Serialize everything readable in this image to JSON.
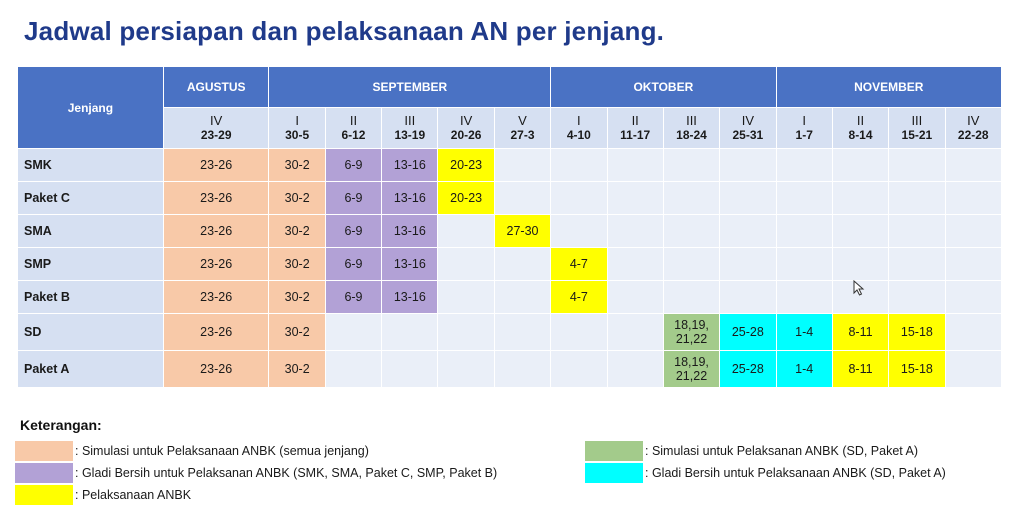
{
  "title": "Jadwal persiapan dan pelaksanaan AN per jenjang.",
  "table": {
    "jenjang_header": "Jenjang",
    "months": [
      {
        "label": "AGUSTUS",
        "span": 1
      },
      {
        "label": "SEPTEMBER",
        "span": 5
      },
      {
        "label": "OKTOBER",
        "span": 4
      },
      {
        "label": "NOVEMBER",
        "span": 4
      }
    ],
    "weeks": [
      {
        "roman": "IV",
        "dates": "23-29"
      },
      {
        "roman": "I",
        "dates": "30-5"
      },
      {
        "roman": "II",
        "dates": "6-12"
      },
      {
        "roman": "III",
        "dates": "13-19"
      },
      {
        "roman": "IV",
        "dates": "20-26"
      },
      {
        "roman": "V",
        "dates": "27-3"
      },
      {
        "roman": "I",
        "dates": "4-10"
      },
      {
        "roman": "II",
        "dates": "11-17"
      },
      {
        "roman": "III",
        "dates": "18-24"
      },
      {
        "roman": "IV",
        "dates": "25-31"
      },
      {
        "roman": "I",
        "dates": "1-7"
      },
      {
        "roman": "II",
        "dates": "8-14"
      },
      {
        "roman": "III",
        "dates": "15-21"
      },
      {
        "roman": "IV",
        "dates": "22-28"
      }
    ],
    "rows": [
      {
        "name": "SMK",
        "cells": [
          {
            "t": "23-26",
            "c": "salmon"
          },
          {
            "t": "30-2",
            "c": "salmon"
          },
          {
            "t": "6-9",
            "c": "purple"
          },
          {
            "t": "13-16",
            "c": "purple"
          },
          {
            "t": "20-23",
            "c": "yellow"
          },
          {
            "t": "",
            "c": "empty"
          },
          {
            "t": "",
            "c": "empty"
          },
          {
            "t": "",
            "c": "empty"
          },
          {
            "t": "",
            "c": "empty"
          },
          {
            "t": "",
            "c": "empty"
          },
          {
            "t": "",
            "c": "empty"
          },
          {
            "t": "",
            "c": "empty"
          },
          {
            "t": "",
            "c": "empty"
          },
          {
            "t": "",
            "c": "empty"
          }
        ]
      },
      {
        "name": "Paket C",
        "cells": [
          {
            "t": "23-26",
            "c": "salmon"
          },
          {
            "t": "30-2",
            "c": "salmon"
          },
          {
            "t": "6-9",
            "c": "purple"
          },
          {
            "t": "13-16",
            "c": "purple"
          },
          {
            "t": "20-23",
            "c": "yellow"
          },
          {
            "t": "",
            "c": "empty"
          },
          {
            "t": "",
            "c": "empty"
          },
          {
            "t": "",
            "c": "empty"
          },
          {
            "t": "",
            "c": "empty"
          },
          {
            "t": "",
            "c": "empty"
          },
          {
            "t": "",
            "c": "empty"
          },
          {
            "t": "",
            "c": "empty"
          },
          {
            "t": "",
            "c": "empty"
          },
          {
            "t": "",
            "c": "empty"
          }
        ]
      },
      {
        "name": "SMA",
        "cells": [
          {
            "t": "23-26",
            "c": "salmon"
          },
          {
            "t": "30-2",
            "c": "salmon"
          },
          {
            "t": "6-9",
            "c": "purple"
          },
          {
            "t": "13-16",
            "c": "purple"
          },
          {
            "t": "",
            "c": "empty"
          },
          {
            "t": "27-30",
            "c": "yellow"
          },
          {
            "t": "",
            "c": "empty"
          },
          {
            "t": "",
            "c": "empty"
          },
          {
            "t": "",
            "c": "empty"
          },
          {
            "t": "",
            "c": "empty"
          },
          {
            "t": "",
            "c": "empty"
          },
          {
            "t": "",
            "c": "empty"
          },
          {
            "t": "",
            "c": "empty"
          },
          {
            "t": "",
            "c": "empty"
          }
        ]
      },
      {
        "name": "SMP",
        "cells": [
          {
            "t": "23-26",
            "c": "salmon"
          },
          {
            "t": "30-2",
            "c": "salmon"
          },
          {
            "t": "6-9",
            "c": "purple"
          },
          {
            "t": "13-16",
            "c": "purple"
          },
          {
            "t": "",
            "c": "empty"
          },
          {
            "t": "",
            "c": "empty"
          },
          {
            "t": "4-7",
            "c": "yellow"
          },
          {
            "t": "",
            "c": "empty"
          },
          {
            "t": "",
            "c": "empty"
          },
          {
            "t": "",
            "c": "empty"
          },
          {
            "t": "",
            "c": "empty"
          },
          {
            "t": "",
            "c": "empty"
          },
          {
            "t": "",
            "c": "empty"
          },
          {
            "t": "",
            "c": "empty"
          }
        ]
      },
      {
        "name": "Paket B",
        "cells": [
          {
            "t": "23-26",
            "c": "salmon"
          },
          {
            "t": "30-2",
            "c": "salmon"
          },
          {
            "t": "6-9",
            "c": "purple"
          },
          {
            "t": "13-16",
            "c": "purple"
          },
          {
            "t": "",
            "c": "empty"
          },
          {
            "t": "",
            "c": "empty"
          },
          {
            "t": "4-7",
            "c": "yellow"
          },
          {
            "t": "",
            "c": "empty"
          },
          {
            "t": "",
            "c": "empty"
          },
          {
            "t": "",
            "c": "empty"
          },
          {
            "t": "",
            "c": "empty"
          },
          {
            "t": "",
            "c": "empty"
          },
          {
            "t": "",
            "c": "empty"
          },
          {
            "t": "",
            "c": "empty"
          }
        ]
      },
      {
        "name": "SD",
        "cells": [
          {
            "t": "23-26",
            "c": "salmon"
          },
          {
            "t": "30-2",
            "c": "salmon"
          },
          {
            "t": "",
            "c": "empty"
          },
          {
            "t": "",
            "c": "empty"
          },
          {
            "t": "",
            "c": "empty"
          },
          {
            "t": "",
            "c": "empty"
          },
          {
            "t": "",
            "c": "empty"
          },
          {
            "t": "",
            "c": "empty"
          },
          {
            "t": "18,19,\n21,22",
            "c": "green"
          },
          {
            "t": "25-28",
            "c": "cyan"
          },
          {
            "t": "1-4",
            "c": "cyan"
          },
          {
            "t": "8-11",
            "c": "yellow"
          },
          {
            "t": "15-18",
            "c": "yellow"
          },
          {
            "t": "",
            "c": "empty"
          }
        ]
      },
      {
        "name": "Paket A",
        "cells": [
          {
            "t": "23-26",
            "c": "salmon"
          },
          {
            "t": "30-2",
            "c": "salmon"
          },
          {
            "t": "",
            "c": "empty"
          },
          {
            "t": "",
            "c": "empty"
          },
          {
            "t": "",
            "c": "empty"
          },
          {
            "t": "",
            "c": "empty"
          },
          {
            "t": "",
            "c": "empty"
          },
          {
            "t": "",
            "c": "empty"
          },
          {
            "t": "18,19,\n21,22",
            "c": "green"
          },
          {
            "t": "25-28",
            "c": "cyan"
          },
          {
            "t": "1-4",
            "c": "cyan"
          },
          {
            "t": "8-11",
            "c": "yellow"
          },
          {
            "t": "15-18",
            "c": "yellow"
          },
          {
            "t": "",
            "c": "empty"
          }
        ]
      }
    ]
  },
  "legend": {
    "title": "Keterangan",
    "items": [
      {
        "color": "#f8c9a8",
        "text": ": Simulasi untuk Pelaksanaan ANBK (semua jenjang)"
      },
      {
        "color": "#b2a1d6",
        "text": ": Gladi Bersih untuk Pelaksanan ANBK (SMK, SMA, Paket C, SMP, Paket B)"
      },
      {
        "color": "#ffff00",
        "text": ": Pelaksanaan ANBK"
      },
      {
        "color": "#a3cb8b",
        "text": ": Simulasi untuk Pelaksanan ANBK (SD, Paket A)"
      },
      {
        "color": "#00ffff",
        "text": ": Gladi Bersih untuk Pelaksanaan ANBK (SD, Paket A)"
      }
    ]
  },
  "colors": {
    "header_blue": "#4a72c4",
    "subheader": "#d6e0f2",
    "empty": "#eaeff8",
    "title": "#1f3a8a"
  }
}
